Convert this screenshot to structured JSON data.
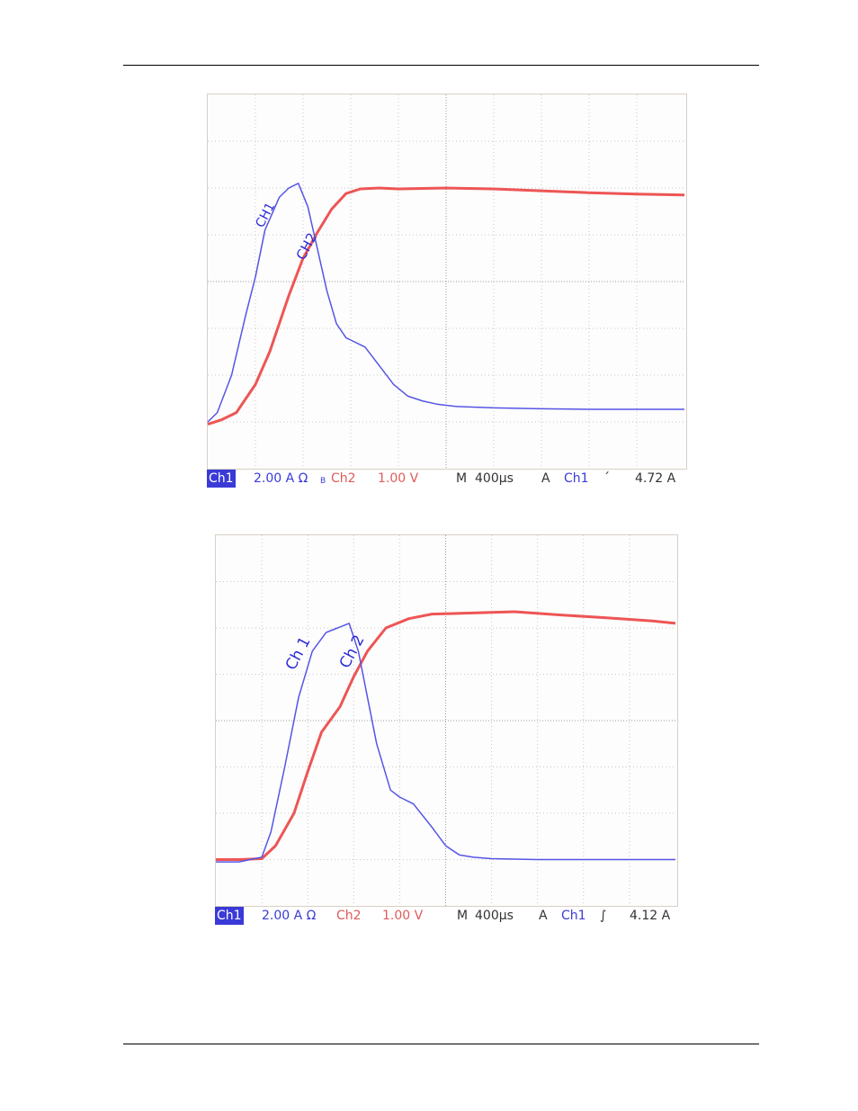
{
  "chart_data": [
    {
      "type": "line",
      "grid": true,
      "xlim": [
        0,
        10
      ],
      "ylim": [
        0,
        8
      ],
      "series": [
        {
          "name": "CH1",
          "color": "#5555e6",
          "x": [
            0,
            0.2,
            0.5,
            0.8,
            1.0,
            1.2,
            1.5,
            1.7,
            1.9,
            2.1,
            2.3,
            2.5,
            2.7,
            2.9,
            3.0,
            3.3,
            3.6,
            3.9,
            4.2,
            4.5,
            4.8,
            5.2,
            6.0,
            7.0,
            8.0,
            9.0,
            10.0
          ],
          "y": [
            1.0,
            1.2,
            2.0,
            3.3,
            4.1,
            5.1,
            5.8,
            6.0,
            6.1,
            5.6,
            4.7,
            3.8,
            3.1,
            2.8,
            2.75,
            2.6,
            2.2,
            1.8,
            1.55,
            1.45,
            1.38,
            1.33,
            1.3,
            1.28,
            1.27,
            1.27,
            1.27
          ]
        },
        {
          "name": "CH2",
          "color": "#ee5555",
          "x": [
            0,
            0.3,
            0.6,
            1.0,
            1.3,
            1.7,
            2.0,
            2.3,
            2.6,
            2.9,
            3.2,
            3.6,
            4.0,
            5.0,
            6.0,
            7.0,
            8.0,
            9.0,
            10.0
          ],
          "y": [
            0.95,
            1.05,
            1.2,
            1.8,
            2.5,
            3.7,
            4.5,
            5.05,
            5.55,
            5.88,
            5.98,
            6.0,
            5.98,
            6.0,
            5.98,
            5.94,
            5.9,
            5.87,
            5.85
          ]
        }
      ],
      "status": {
        "ch1": "Ch1",
        "ch1_scale": "2.00 A Ω",
        "ch1_extra": "B",
        "ch2": "Ch2",
        "ch2_scale": "1.00 V",
        "m": "M",
        "timebase": "400µs",
        "a": "A",
        "trig_source": "Ch1",
        "trig_slope": "falling",
        "trig_level": "4.72 A"
      }
    },
    {
      "type": "line",
      "grid": true,
      "xlim": [
        0,
        10
      ],
      "ylim": [
        0,
        8
      ],
      "series": [
        {
          "name": "Ch 1",
          "color": "#5555e6",
          "x": [
            0,
            0.5,
            1.0,
            1.2,
            1.5,
            1.8,
            2.1,
            2.4,
            2.6,
            2.9,
            3.1,
            3.3,
            3.5,
            3.8,
            4.0,
            4.3,
            4.7,
            5.0,
            5.3,
            5.6,
            6.0,
            7.0,
            8.0,
            9.0,
            10.0
          ],
          "y": [
            0.95,
            0.95,
            1.05,
            1.6,
            3.0,
            4.5,
            5.5,
            5.9,
            5.98,
            6.1,
            5.5,
            4.5,
            3.5,
            2.5,
            2.35,
            2.2,
            1.7,
            1.3,
            1.1,
            1.05,
            1.02,
            1.0,
            1.0,
            1.0,
            1.0
          ]
        },
        {
          "name": "Ch 2",
          "color": "#ee5555",
          "x": [
            0,
            0.5,
            1.0,
            1.3,
            1.7,
            2.0,
            2.3,
            2.7,
            3.0,
            3.3,
            3.7,
            4.2,
            4.7,
            5.5,
            6.5,
            7.5,
            8.5,
            9.5,
            10.0
          ],
          "y": [
            1.0,
            1.0,
            1.02,
            1.3,
            2.0,
            2.9,
            3.75,
            4.3,
            4.95,
            5.5,
            6.0,
            6.2,
            6.3,
            6.32,
            6.35,
            6.28,
            6.22,
            6.15,
            6.1
          ]
        }
      ],
      "status": {
        "ch1": "Ch1",
        "ch1_scale": "2.00 A Ω",
        "ch2": "Ch2",
        "ch2_scale": "1.00 V",
        "m": "M",
        "timebase": "400µs",
        "a": "A",
        "trig_source": "Ch1",
        "trig_slope": "rising",
        "trig_level": "4.12 A"
      }
    }
  ]
}
